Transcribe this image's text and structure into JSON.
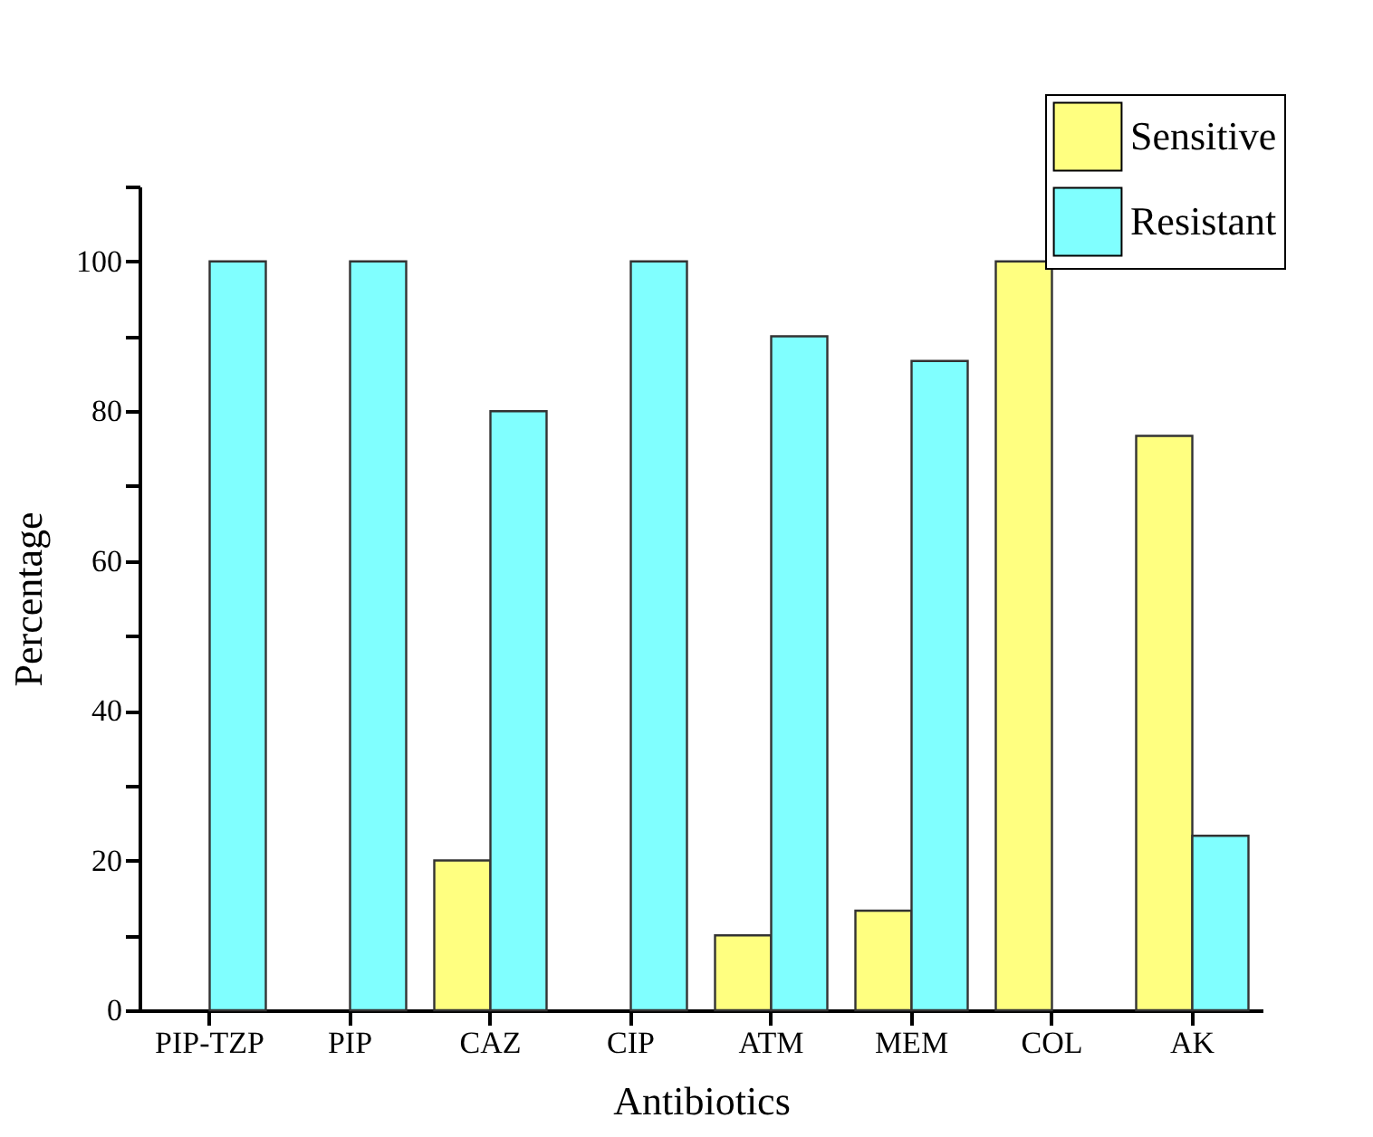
{
  "chart_data": {
    "type": "bar",
    "xlabel": "Antibiotics",
    "ylabel": "Percentage",
    "categories": [
      "PIP-TZP",
      "PIP",
      "CAZ",
      "CIP",
      "ATM",
      "MEM",
      "COL",
      "AK"
    ],
    "series": [
      {
        "name": "Sensitive",
        "color": "#ffff80",
        "values": [
          0,
          0,
          20,
          0,
          10,
          13.3,
          100,
          76.7
        ]
      },
      {
        "name": "Resistant",
        "color": "#80ffff",
        "values": [
          100,
          100,
          80,
          100,
          90,
          86.7,
          0,
          23.3
        ]
      }
    ],
    "ylim": [
      0,
      110
    ],
    "yticks": [
      0,
      {
        "value": 10,
        "label": null
      },
      20,
      {
        "value": 30,
        "label": null
      },
      40,
      {
        "value": 50,
        "label": null
      },
      60,
      {
        "value": 70,
        "label": null
      },
      80,
      {
        "value": 90,
        "label": null
      },
      100,
      {
        "value": 110,
        "label": null
      }
    ],
    "grid": false,
    "legend": "top right"
  }
}
